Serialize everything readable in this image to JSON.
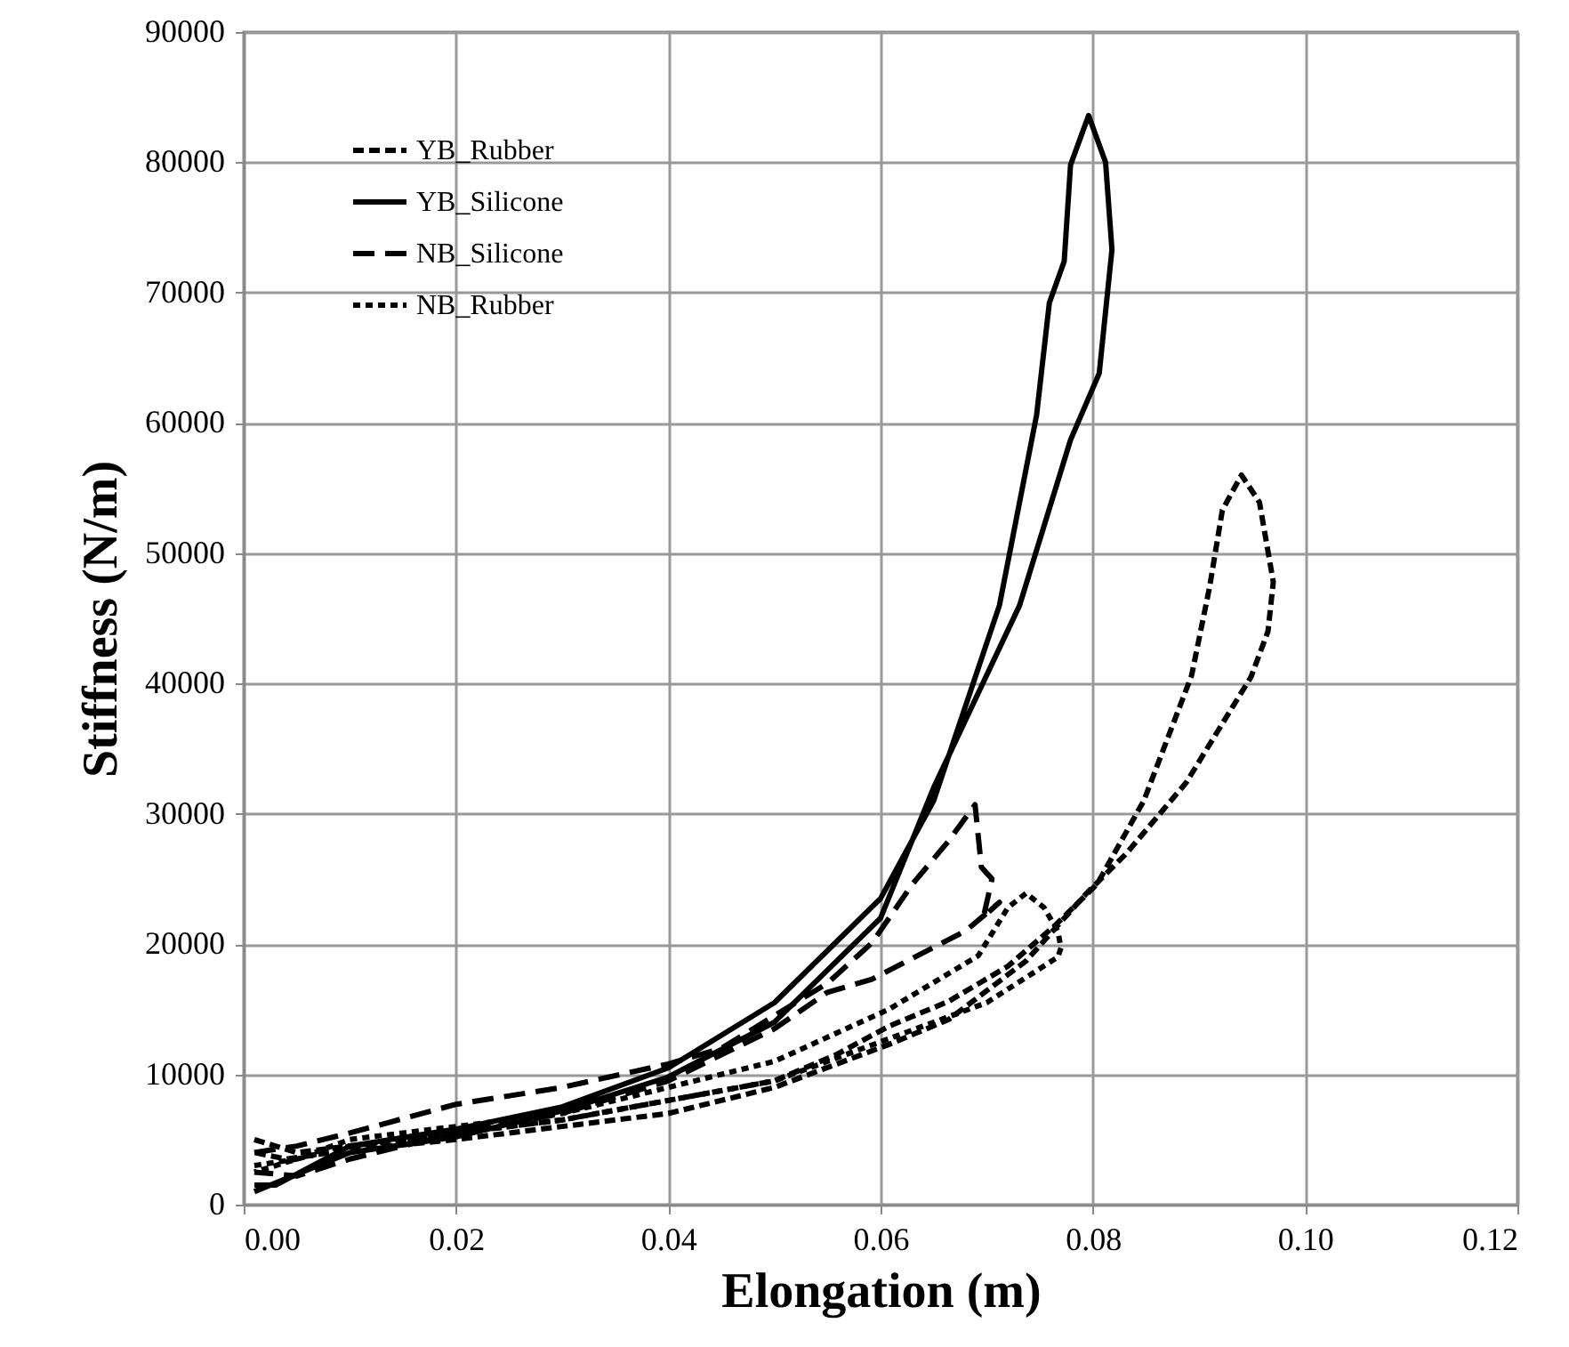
{
  "chart_data": {
    "type": "line",
    "xlabel": "Elongation (m)",
    "ylabel": "Stiffness (N/m)",
    "xlim": [
      0,
      0.12
    ],
    "xticks": [
      {
        "value": 0,
        "label": "0.00"
      },
      {
        "value": 0.02,
        "label": "0.02"
      },
      {
        "value": 0.04,
        "label": "0.04"
      },
      {
        "value": 0.06,
        "label": "0.06"
      },
      {
        "value": 0.08,
        "label": "0.08"
      },
      {
        "value": 0.1,
        "label": "0.10"
      },
      {
        "value": 0.12,
        "label": "0.12"
      }
    ],
    "ylim": [
      0,
      90000
    ],
    "yticks": [
      0,
      10000,
      20000,
      30000,
      40000,
      50000,
      60000,
      70000,
      80000,
      90000
    ],
    "grid": true,
    "legend": "top left",
    "marker": "none",
    "series": [
      {
        "name": "YB_Rubber",
        "color": "#000000",
        "line_style": "dashed",
        "x": [
          0.001,
          0.005,
          0.01,
          0.02,
          0.03,
          0.04,
          0.05,
          0.0558,
          0.0608,
          0.0664,
          0.072,
          0.0764,
          0.0804,
          0.0848,
          0.0893,
          0.091,
          0.0922,
          0.094,
          0.0957,
          0.097,
          0.0965,
          0.0949,
          0.0888,
          0.0831,
          0.0793,
          0.0737,
          0.0664,
          0.0608,
          0.05,
          0.04,
          0.03,
          0.02,
          0.01,
          0.004,
          0.001
        ],
        "values": [
          5000,
          4000,
          4500,
          5500,
          6500,
          8000,
          9500,
          11500,
          13700,
          15600,
          18300,
          21400,
          24600,
          31000,
          40600,
          47400,
          53300,
          56000,
          53900,
          47800,
          44000,
          40500,
          32400,
          26900,
          23800,
          18700,
          14200,
          12300,
          9000,
          7000,
          6000,
          5000,
          4200,
          3500,
          4000
        ]
      },
      {
        "name": "YB_Silicone",
        "color": "#000000",
        "line_style": "solid",
        "x": [
          0.001,
          0.003,
          0.01,
          0.02,
          0.03,
          0.04,
          0.05,
          0.06,
          0.065,
          0.0712,
          0.0747,
          0.0759,
          0.0773,
          0.0779,
          0.0796,
          0.0812,
          0.0818,
          0.0806,
          0.0779,
          0.0731,
          0.065,
          0.06,
          0.05,
          0.04,
          0.03,
          0.02,
          0.01,
          0.004,
          0.001
        ],
        "values": [
          1500,
          1500,
          4500,
          5800,
          7500,
          10500,
          15500,
          23500,
          31000,
          46000,
          60600,
          69200,
          72400,
          79800,
          83600,
          80000,
          73300,
          63800,
          58700,
          46000,
          32000,
          22000,
          14000,
          9800,
          7200,
          5200,
          4000,
          2000,
          1000
        ]
      },
      {
        "name": "NB_Silicone",
        "color": "#000000",
        "line_style": "dashed",
        "x": [
          0.001,
          0.005,
          0.01,
          0.02,
          0.03,
          0.04,
          0.045,
          0.05,
          0.055,
          0.0592,
          0.063,
          0.0664,
          0.0689,
          0.0695,
          0.0705,
          0.0697,
          0.0712,
          0.068,
          0.0625,
          0.0592,
          0.055,
          0.05,
          0.04,
          0.03,
          0.02,
          0.01,
          0.005,
          0.001
        ],
        "values": [
          4000,
          4500,
          5500,
          7700,
          9000,
          10800,
          12000,
          14500,
          17000,
          20100,
          24600,
          27900,
          30700,
          25900,
          25000,
          22100,
          23200,
          21000,
          18700,
          17300,
          16300,
          13500,
          9500,
          7000,
          5500,
          3500,
          2200,
          2500
        ]
      },
      {
        "name": "NB_Rubber",
        "color": "#000000",
        "line_style": "dotted",
        "x": [
          0.001,
          0.005,
          0.01,
          0.02,
          0.03,
          0.04,
          0.05,
          0.0608,
          0.0692,
          0.072,
          0.0737,
          0.0754,
          0.0767,
          0.077,
          0.0767,
          0.07,
          0.06,
          0.05,
          0.04,
          0.03,
          0.02,
          0.01,
          0.005,
          0.001
        ],
        "values": [
          3000,
          3500,
          5000,
          6000,
          7000,
          9000,
          11000,
          15000,
          19100,
          22800,
          23900,
          22800,
          21000,
          19700,
          19000,
          15500,
          12500,
          9500,
          8000,
          6500,
          5500,
          4500,
          3500,
          2500
        ]
      }
    ]
  }
}
